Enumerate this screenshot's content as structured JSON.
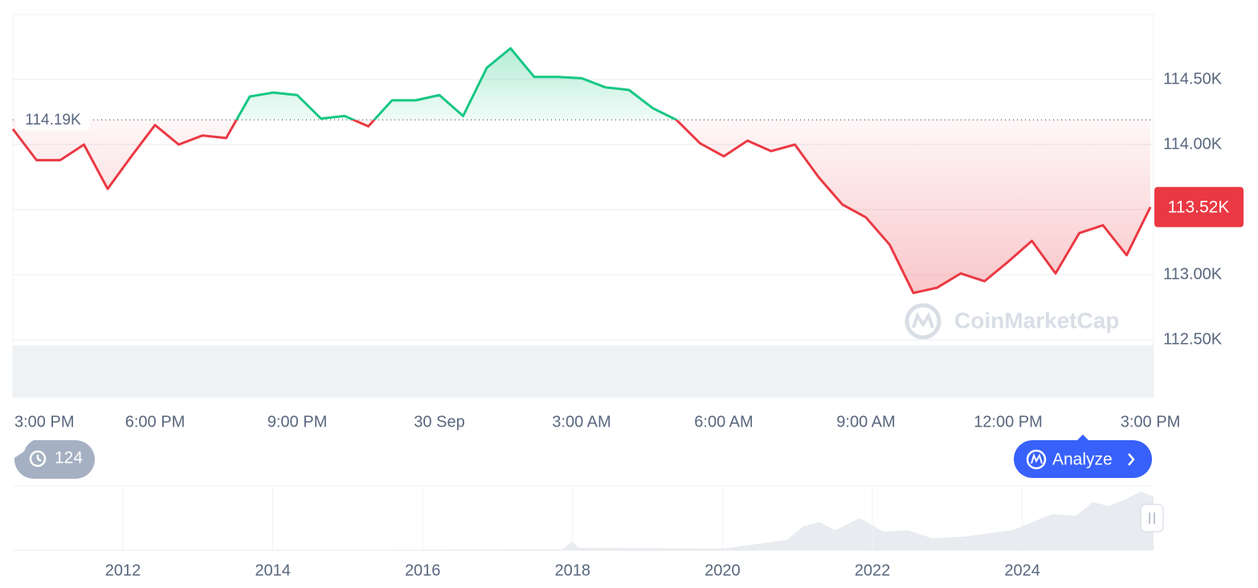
{
  "chart_data": {
    "type": "line",
    "xlim": [
      0,
      24
    ],
    "xticks": [
      {
        "value": 0,
        "label": "3:00 PM"
      },
      {
        "value": 3,
        "label": "6:00 PM"
      },
      {
        "value": 6,
        "label": "9:00 PM"
      },
      {
        "value": 9,
        "label": "30 Sep"
      },
      {
        "value": 12,
        "label": "3:00 AM"
      },
      {
        "value": 15,
        "label": "6:00 AM"
      },
      {
        "value": 18,
        "label": "9:00 AM"
      },
      {
        "value": 21,
        "label": "12:00 PM"
      },
      {
        "value": 24,
        "label": "3:00 PM"
      }
    ],
    "ylim": [
      112.5,
      115.0
    ],
    "yticks": [
      {
        "value": 112.5,
        "label": "112.50K"
      },
      {
        "value": 113.0,
        "label": "113.00K"
      },
      {
        "value": 113.5,
        "label": ""
      },
      {
        "value": 114.0,
        "label": "114.00K"
      },
      {
        "value": 114.5,
        "label": "114.50K"
      }
    ],
    "grid": true,
    "x": [
      0,
      0.5,
      1,
      1.5,
      2,
      2.5,
      3,
      3.5,
      4,
      4.5,
      5,
      5.5,
      6,
      6.5,
      7,
      7.5,
      8,
      8.5,
      9,
      9.5,
      10,
      10.5,
      11,
      11.5,
      12,
      12.5,
      13,
      13.5,
      14,
      14.5,
      15,
      15.5,
      16,
      16.5,
      17,
      17.5,
      18,
      18.5,
      19,
      19.5,
      20,
      20.5,
      21,
      21.5,
      22,
      22.5,
      23,
      23.5,
      24
    ],
    "values": [
      114.12,
      113.88,
      113.88,
      114.0,
      113.66,
      113.91,
      114.15,
      114.0,
      114.07,
      114.05,
      114.37,
      114.4,
      114.38,
      114.2,
      114.22,
      114.14,
      114.34,
      114.34,
      114.38,
      114.22,
      114.59,
      114.74,
      114.52,
      114.52,
      114.51,
      114.44,
      114.42,
      114.28,
      114.19,
      114.01,
      113.91,
      114.03,
      113.95,
      114.0,
      113.75,
      113.54,
      113.44,
      113.23,
      112.86,
      112.9,
      113.01,
      112.95,
      113.1,
      113.26,
      113.01,
      113.32,
      113.38,
      113.15,
      113.52
    ],
    "up_color": "#16c784",
    "down_color": "#ea3943",
    "reference": {
      "value": 114.19,
      "label": "114.19K"
    },
    "last_label": "113.52K"
  },
  "watermark": "CoinMarketCap",
  "history_badge": "124",
  "analyze_button": "Analyze",
  "navigator": {
    "labels": [
      "2012",
      "2014",
      "2016",
      "2018",
      "2020",
      "2022",
      "2024"
    ]
  }
}
